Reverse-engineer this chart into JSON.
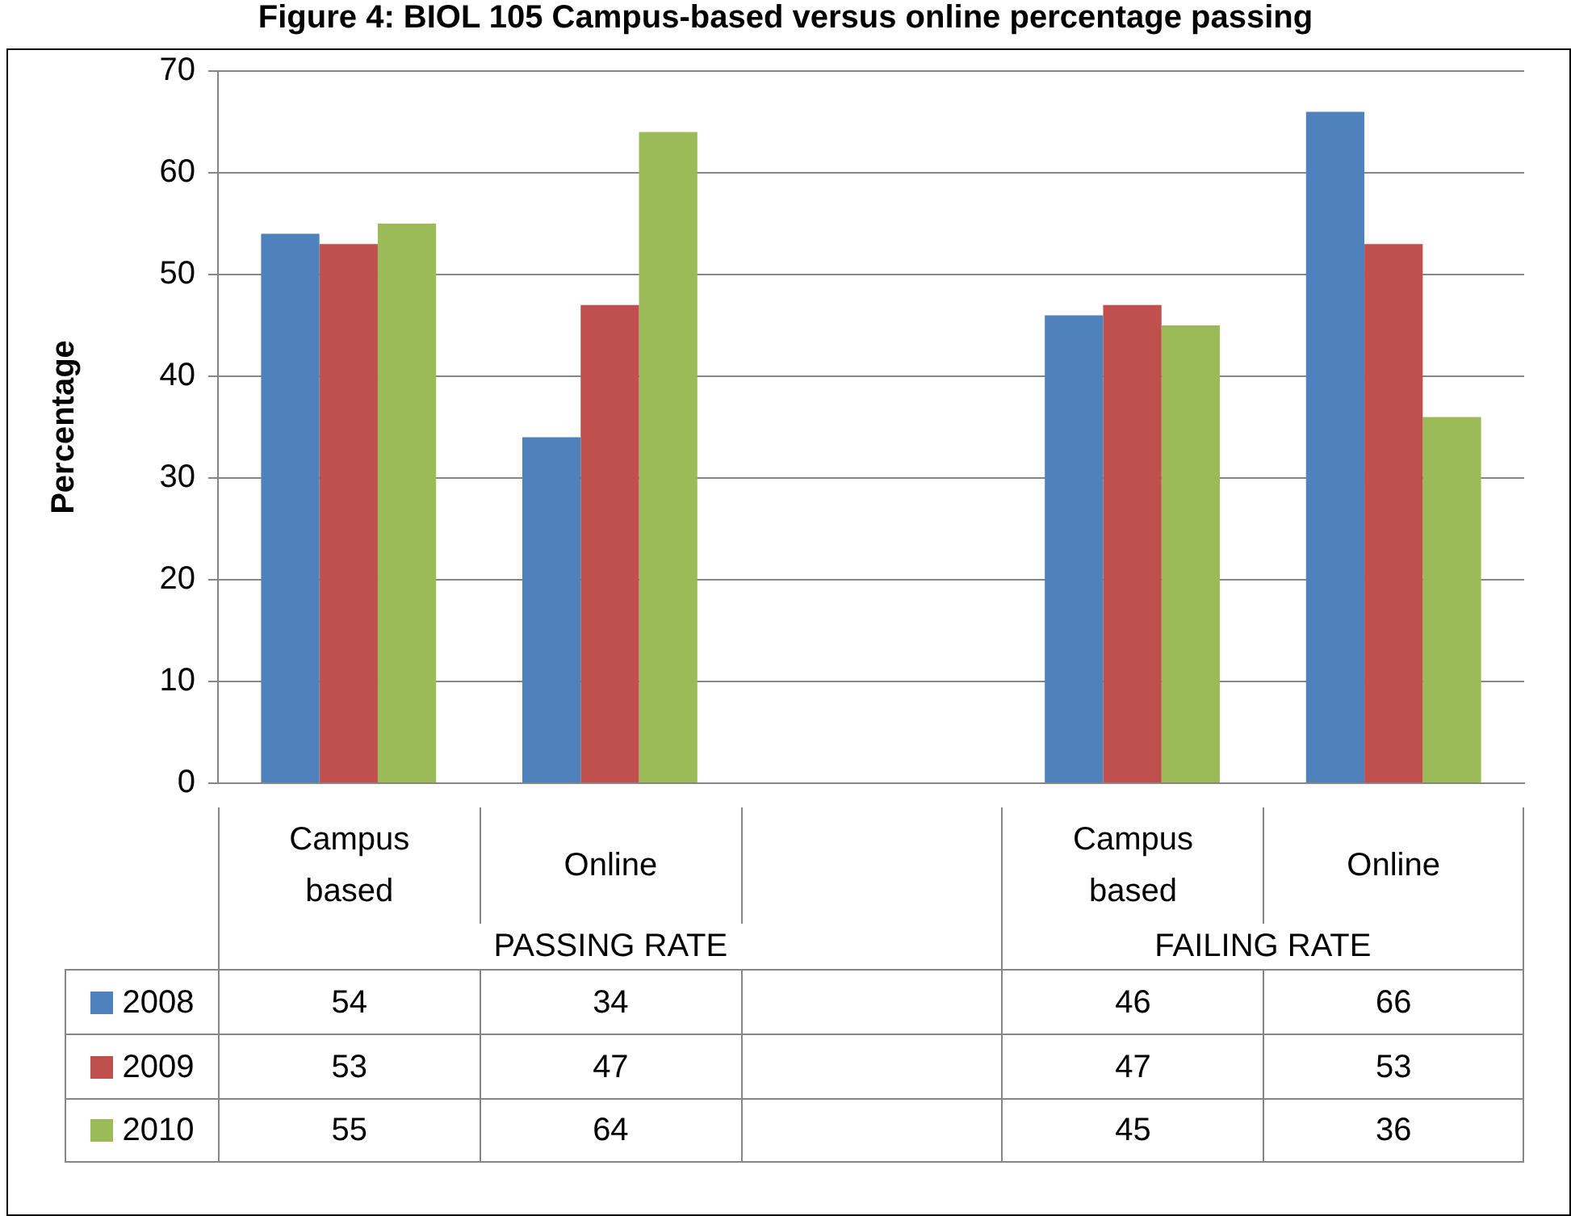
{
  "chart_data": {
    "type": "bar",
    "title": "Figure 4: BIOL 105 Campus-based versus online percentage passing",
    "ylabel": "Percentage",
    "categories": [
      "Campus based",
      "Online",
      null,
      "Campus based",
      "Online"
    ],
    "series": [
      {
        "name": "2008",
        "color": "#4f81bd",
        "values": [
          54,
          34,
          null,
          46,
          66
        ]
      },
      {
        "name": "2009",
        "color": "#c0504d",
        "values": [
          53,
          47,
          null,
          47,
          53
        ]
      },
      {
        "name": "2010",
        "color": "#9bbb59",
        "values": [
          55,
          64,
          null,
          45,
          36
        ]
      }
    ],
    "annotations": [
      "PASSING RATE",
      "FAILING RATE"
    ],
    "ylim": [
      0,
      70
    ],
    "yticks": [
      0,
      10,
      20,
      30,
      40,
      50,
      60,
      70
    ],
    "grid": "y",
    "legend": "bottom",
    "data_labels": true
  }
}
